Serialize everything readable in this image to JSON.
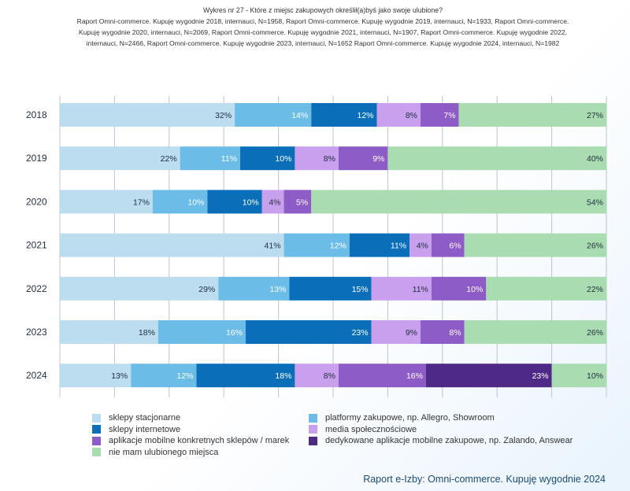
{
  "header": {
    "title": "Wykres nr 27 - Które z miejsc zakupowych określił(a)byś jako swoje ulubione?",
    "source_lines": [
      "Raport Omni-commerce. Kupuję wygodnie 2018, internauci, N=1958, Raport Omni-commerce. Kupuję wygodnie 2019, internauci, N=1933, Raport Omni-commerce.",
      "Kupuję wygodnie 2020, internauci, N=2069, Raport Omni-commerce. Kupuję wygodnie 2021, internauci, N=1907, Raport Omni-commerce. Kupuję wygodnie 2022,",
      "internauci, N=2466, Raport Omni-commerce. Kupuję wygodnie 2023, internauci, N=1652 Raport Omni-commerce. Kupuję wygodnie 2024, internauci, N=1982"
    ]
  },
  "chart_data": {
    "type": "bar",
    "orientation": "horizontal",
    "stacked": true,
    "normalized": true,
    "categories": [
      "2018",
      "2019",
      "2020",
      "2021",
      "2022",
      "2023",
      "2024"
    ],
    "series": [
      {
        "name": "sklepy stacjonarne",
        "color": "#bcdcf0",
        "label_color": "#1f2d3d",
        "values": [
          32,
          22,
          17,
          41,
          29,
          18,
          13
        ]
      },
      {
        "name": "platformy zakupowe, np. Allegro, Showroom",
        "color": "#6bbde8",
        "label_color": "#ffffff",
        "values": [
          14,
          11,
          10,
          12,
          13,
          16,
          12
        ]
      },
      {
        "name": "sklepy internetowe",
        "color": "#0a6fb8",
        "label_color": "#ffffff",
        "values": [
          12,
          10,
          10,
          11,
          15,
          23,
          18
        ]
      },
      {
        "name": "media społecznościowe",
        "color": "#c9a0ee",
        "label_color": "#1f2d3d",
        "values": [
          8,
          8,
          4,
          4,
          11,
          9,
          8
        ]
      },
      {
        "name": "aplikacje mobilne konkretnych sklepów / marek",
        "color": "#8e5cc6",
        "label_color": "#ffffff",
        "values": [
          7,
          9,
          5,
          6,
          10,
          8,
          16
        ]
      },
      {
        "name": "dedykowane aplikacje mobilne zakupowe, np. Zalando, Answear",
        "color": "#4e2a86",
        "label_color": "#ffffff",
        "values": [
          0,
          0,
          0,
          0,
          0,
          0,
          23
        ]
      },
      {
        "name": "nie mam ulubionego miejsca",
        "color": "#a9dcb0",
        "label_color": "#1f2d3d",
        "values": [
          27,
          40,
          54,
          26,
          22,
          26,
          10
        ]
      }
    ],
    "value_suffix": "%",
    "legend_position": "bottom",
    "grid": true
  },
  "legend": {
    "left_column": [
      "sklepy stacjonarne",
      "sklepy internetowe",
      "aplikacje mobilne konkretnych sklepów / marek",
      "nie mam ulubionego miejsca"
    ],
    "right_column": [
      "platformy zakupowe, np. Allegro, Showroom",
      "media społecznościowe",
      "dedykowane aplikacje mobilne zakupowe, np. Zalando, Answear"
    ]
  },
  "footer": {
    "text": "Raport e-Izby: Omni-commerce. Kupuję wygodnie 2024"
  }
}
